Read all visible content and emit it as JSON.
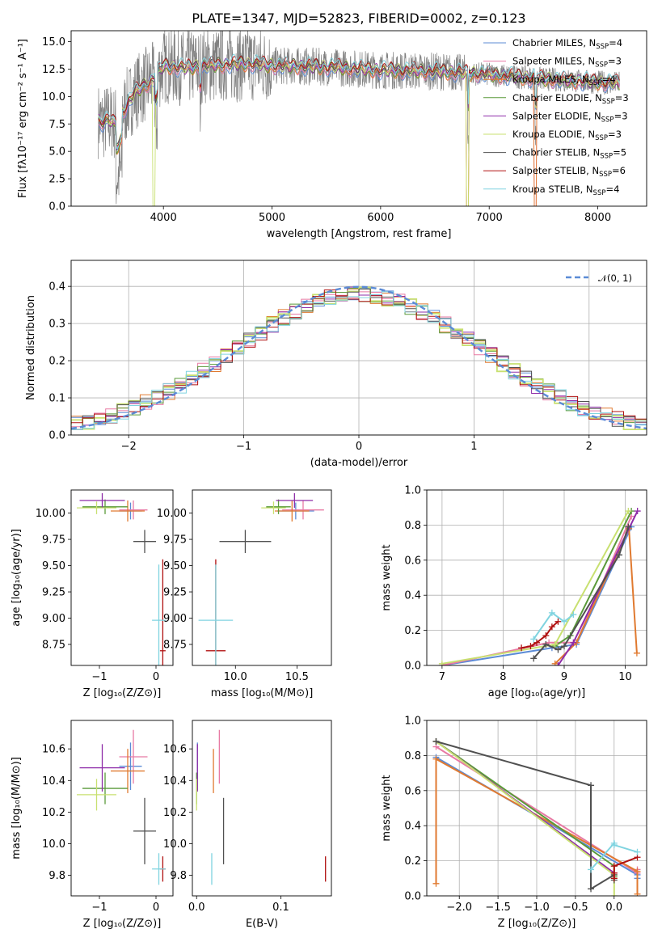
{
  "colors": {
    "Chabrier MILES": "#5b8bd6",
    "Salpeter MILES": "#e87aa4",
    "Kroupa MILES": "#e07a30",
    "Chabrier ELODIE": "#5a9a3a",
    "Salpeter ELODIE": "#8e2ca8",
    "Kroupa ELODIE": "#c8e070",
    "Chabrier STELIB": "#505050",
    "Salpeter STELIB": "#b01010",
    "Kroupa STELIB": "#80d4e0",
    "normal": "#5b8bd6",
    "data": "#808080"
  },
  "series_order": [
    "Chabrier MILES",
    "Salpeter MILES",
    "Kroupa MILES",
    "Chabrier ELODIE",
    "Salpeter ELODIE",
    "Kroupa ELODIE",
    "Chabrier STELIB",
    "Salpeter STELIB",
    "Kroupa STELIB"
  ],
  "chart_data": [
    {
      "id": "spectrum",
      "type": "line",
      "title": "PLATE=1347, MJD=52823, FIBERID=0002, z=0.123",
      "xlabel": "wavelength [Angstrom, rest frame]",
      "ylabel": "Flux [fλ10⁻¹⁷ erg cm⁻² s⁻¹ A⁻¹]",
      "xlim": [
        3150,
        8450
      ],
      "ylim": [
        0,
        16
      ],
      "xticks": [
        "4000",
        "5000",
        "6000",
        "7000",
        "8000"
      ],
      "yticks": [
        "0.0",
        "2.5",
        "5.0",
        "7.5",
        "10.0",
        "12.5",
        "15.0"
      ],
      "legend_position": "upper right",
      "legend": [
        {
          "main": "Chabrier MILES, N",
          "sub": "SSP",
          "tail": "=4"
        },
        {
          "main": "Salpeter MILES, N",
          "sub": "SSP",
          "tail": "=3"
        },
        {
          "main": "Kroupa MILES, N",
          "sub": "SSP",
          "tail": "=4"
        },
        {
          "main": "Chabrier ELODIE, N",
          "sub": "SSP",
          "tail": "=3"
        },
        {
          "main": "Salpeter ELODIE, N",
          "sub": "SSP",
          "tail": "=3"
        },
        {
          "main": "Kroupa ELODIE, N",
          "sub": "SSP",
          "tail": "=3"
        },
        {
          "main": "Chabrier STELIB, N",
          "sub": "SSP",
          "tail": "=5"
        },
        {
          "main": "Salpeter STELIB, N",
          "sub": "SSP",
          "tail": "=6"
        },
        {
          "main": "Kroupa STELIB, N",
          "sub": "SSP",
          "tail": "=4"
        }
      ],
      "continuum_x": [
        3400,
        3450,
        3500,
        3550,
        3650,
        3750,
        3900,
        4000,
        4200,
        4500,
        4800,
        5000,
        5500,
        6000,
        6500,
        7000,
        7500,
        8000,
        8200
      ],
      "continuum_y": [
        7.8,
        7.6,
        7.9,
        7.5,
        9.0,
        10.5,
        11.5,
        12.8,
        12.6,
        12.9,
        13.0,
        12.8,
        12.7,
        12.4,
        12.3,
        12.0,
        11.6,
        11.3,
        11.2
      ]
    },
    {
      "id": "residuals",
      "type": "line",
      "xlabel": "(data-model)/error",
      "ylabel": "Normed distribution",
      "xlim": [
        -2.5,
        2.5
      ],
      "ylim": [
        0,
        0.47
      ],
      "xticks": [
        "−2",
        "−1",
        "0",
        "1",
        "2"
      ],
      "yticks": [
        "0.0",
        "0.1",
        "0.2",
        "0.3",
        "0.4"
      ],
      "grid": true,
      "legend": "𝒩(0, 1)",
      "legend_position": "upper right",
      "bin_width": 0.1
    },
    {
      "id": "age_vs_Z",
      "type": "scatter",
      "xlabel": "Z [log₁₀(Z/Z⊙)]",
      "ylabel": "age  [log₁₀(age/yr)]",
      "xlim": [
        -1.5,
        0.3
      ],
      "ylim": [
        8.55,
        10.22
      ],
      "xticks": [
        "−1",
        "0"
      ],
      "yticks": [
        "8.75",
        "9.00",
        "9.25",
        "9.50",
        "9.75",
        "10.00"
      ],
      "points": [
        {
          "s": "Chabrier MILES",
          "x": -0.45,
          "y": 10.02,
          "xerr": 0.2,
          "yerr": 0.08
        },
        {
          "s": "Salpeter MILES",
          "x": -0.4,
          "y": 10.03,
          "xerr": 0.25,
          "yerr": 0.09
        },
        {
          "s": "Kroupa MILES",
          "x": -0.5,
          "y": 10.02,
          "xerr": 0.3,
          "yerr": 0.1
        },
        {
          "s": "Chabrier ELODIE",
          "x": -0.9,
          "y": 10.06,
          "xerr": 0.4,
          "yerr": 0.07
        },
        {
          "s": "Salpeter ELODIE",
          "x": -0.95,
          "y": 10.12,
          "xerr": 0.4,
          "yerr": 0.07
        },
        {
          "s": "Kroupa ELODIE",
          "x": -1.05,
          "y": 10.05,
          "xerr": 0.35,
          "yerr": 0.06
        },
        {
          "s": "Chabrier STELIB",
          "x": -0.2,
          "y": 9.73,
          "xerr": 0.2,
          "yerr": 0.11
        },
        {
          "s": "Salpeter STELIB",
          "x": 0.12,
          "y": 8.69,
          "xerr": 0.05,
          "yerr": 0.87
        },
        {
          "s": "Kroupa STELIB",
          "x": 0.05,
          "y": 8.98,
          "xerr": 0.12,
          "yerr": 0.53
        }
      ]
    },
    {
      "id": "age_vs_mass",
      "type": "scatter",
      "xlabel": "mass [log₁₀(M/M⊙)]",
      "xlim": [
        9.65,
        10.78
      ],
      "ylim": [
        8.55,
        10.22
      ],
      "xticks": [
        "10.0",
        "10.5"
      ],
      "yticks": [
        "8.75",
        "9.00",
        "9.25",
        "9.50",
        "9.75",
        "10.00"
      ],
      "points": [
        {
          "s": "Chabrier MILES",
          "x": 10.49,
          "y": 10.02,
          "xerr": 0.15,
          "yerr": 0.08
        },
        {
          "s": "Salpeter MILES",
          "x": 10.55,
          "y": 10.03,
          "xerr": 0.17,
          "yerr": 0.09
        },
        {
          "s": "Kroupa MILES",
          "x": 10.46,
          "y": 10.02,
          "xerr": 0.14,
          "yerr": 0.1
        },
        {
          "s": "Chabrier ELODIE",
          "x": 10.35,
          "y": 10.06,
          "xerr": 0.1,
          "yerr": 0.07
        },
        {
          "s": "Salpeter ELODIE",
          "x": 10.48,
          "y": 10.12,
          "xerr": 0.15,
          "yerr": 0.07
        },
        {
          "s": "Kroupa ELODIE",
          "x": 10.31,
          "y": 10.05,
          "xerr": 0.1,
          "yerr": 0.06
        },
        {
          "s": "Chabrier STELIB",
          "x": 10.08,
          "y": 9.73,
          "xerr": 0.21,
          "yerr": 0.11
        },
        {
          "s": "Salpeter STELIB",
          "x": 9.84,
          "y": 8.69,
          "xerr": 0.08,
          "yerr": 0.87
        },
        {
          "s": "Kroupa STELIB",
          "x": 9.84,
          "y": 8.98,
          "xerr": 0.14,
          "yerr": 0.53
        }
      ]
    },
    {
      "id": "massweight_vs_age",
      "type": "line",
      "xlabel": "age  [log₁₀(age/yr)]",
      "ylabel": "mass weight",
      "xlim": [
        6.75,
        10.35
      ],
      "ylim": [
        0,
        1
      ],
      "xticks": [
        "7",
        "8",
        "9",
        "10"
      ],
      "yticks": [
        "0.0",
        "0.2",
        "0.4",
        "0.6",
        "0.8",
        "1.0"
      ],
      "grid": true,
      "series": [
        {
          "s": "Chabrier MILES",
          "x": [
            7.0,
            8.8,
            9.2,
            10.1
          ],
          "y": [
            0.0,
            0.1,
            0.12,
            0.79
          ]
        },
        {
          "s": "Salpeter MILES",
          "x": [
            7.0,
            8.75,
            9.2,
            10.1
          ],
          "y": [
            0.0,
            0.13,
            0.13,
            0.85
          ]
        },
        {
          "s": "Kroupa MILES",
          "x": [
            8.85,
            9.2,
            10.06,
            10.19
          ],
          "y": [
            0.01,
            0.13,
            0.78,
            0.07
          ]
        },
        {
          "s": "Chabrier ELODIE",
          "x": [
            8.85,
            9.1,
            10.1
          ],
          "y": [
            0.11,
            0.17,
            0.88
          ]
        },
        {
          "s": "Salpeter ELODIE",
          "x": [
            8.9,
            9.15,
            10.2
          ],
          "y": [
            0.0,
            0.13,
            0.88
          ]
        },
        {
          "s": "Kroupa ELODIE",
          "x": [
            7.0,
            8.85,
            10.05
          ],
          "y": [
            0.01,
            0.12,
            0.88
          ]
        },
        {
          "s": "Chabrier STELIB",
          "x": [
            8.5,
            8.7,
            8.9,
            9.0,
            9.9,
            10.05
          ],
          "y": [
            0.04,
            0.12,
            0.09,
            0.11,
            0.63,
            0.79
          ]
        },
        {
          "s": "Salpeter STELIB",
          "x": [
            8.3,
            8.45,
            8.55,
            8.7,
            8.8,
            8.9
          ],
          "y": [
            0.1,
            0.11,
            0.13,
            0.17,
            0.22,
            0.25
          ]
        },
        {
          "s": "Kroupa STELIB",
          "x": [
            8.5,
            8.8,
            9.0,
            9.15
          ],
          "y": [
            0.15,
            0.3,
            0.25,
            0.29
          ]
        }
      ]
    },
    {
      "id": "mass_vs_Z",
      "type": "scatter",
      "xlabel": "Z [log₁₀(Z/Z⊙)]",
      "ylabel": "mass [log₁₀(M/M⊙)]",
      "xlim": [
        -1.5,
        0.3
      ],
      "ylim": [
        9.67,
        10.78
      ],
      "xticks": [
        "−1",
        "0"
      ],
      "yticks": [
        "9.8",
        "10.0",
        "10.2",
        "10.4",
        "10.6"
      ],
      "points": [
        {
          "s": "Chabrier MILES",
          "x": -0.45,
          "y": 10.49,
          "xerr": 0.2,
          "yerr": 0.15
        },
        {
          "s": "Salpeter MILES",
          "x": -0.4,
          "y": 10.55,
          "xerr": 0.25,
          "yerr": 0.17
        },
        {
          "s": "Kroupa MILES",
          "x": -0.5,
          "y": 10.46,
          "xerr": 0.3,
          "yerr": 0.14
        },
        {
          "s": "Chabrier ELODIE",
          "x": -0.9,
          "y": 10.35,
          "xerr": 0.4,
          "yerr": 0.1
        },
        {
          "s": "Salpeter ELODIE",
          "x": -0.95,
          "y": 10.48,
          "xerr": 0.4,
          "yerr": 0.15
        },
        {
          "s": "Kroupa ELODIE",
          "x": -1.05,
          "y": 10.31,
          "xerr": 0.35,
          "yerr": 0.1
        },
        {
          "s": "Chabrier STELIB",
          "x": -0.2,
          "y": 10.08,
          "xerr": 0.2,
          "yerr": 0.21
        },
        {
          "s": "Salpeter STELIB",
          "x": 0.12,
          "y": 9.84,
          "xerr": 0.05,
          "yerr": 0.08
        },
        {
          "s": "Kroupa STELIB",
          "x": 0.05,
          "y": 9.84,
          "xerr": 0.12,
          "yerr": 0.1
        }
      ]
    },
    {
      "id": "mass_vs_ebv",
      "type": "scatter",
      "xlabel": "E(B-V)",
      "xlim": [
        -0.005,
        0.16
      ],
      "ylim": [
        9.67,
        10.78
      ],
      "xticks": [
        "0.0",
        "0.1"
      ],
      "yticks": [
        "9.8",
        "10.0",
        "10.2",
        "10.4",
        "10.6"
      ],
      "points": [
        {
          "s": "Chabrier MILES",
          "x": 0.001,
          "y": 10.49,
          "xerr": 0,
          "yerr": 0.15
        },
        {
          "s": "Salpeter MILES",
          "x": 0.027,
          "y": 10.55,
          "xerr": 0,
          "yerr": 0.17
        },
        {
          "s": "Kroupa MILES",
          "x": 0.02,
          "y": 10.46,
          "xerr": 0,
          "yerr": 0.14
        },
        {
          "s": "Chabrier ELODIE",
          "x": 0.0,
          "y": 10.35,
          "xerr": 0,
          "yerr": 0.1
        },
        {
          "s": "Salpeter ELODIE",
          "x": 0.001,
          "y": 10.48,
          "xerr": 0,
          "yerr": 0.15
        },
        {
          "s": "Kroupa ELODIE",
          "x": 0.0,
          "y": 10.31,
          "xerr": 0,
          "yerr": 0.1
        },
        {
          "s": "Chabrier STELIB",
          "x": 0.032,
          "y": 10.08,
          "xerr": 0,
          "yerr": 0.21
        },
        {
          "s": "Salpeter STELIB",
          "x": 0.153,
          "y": 9.84,
          "xerr": 0,
          "yerr": 0.08
        },
        {
          "s": "Kroupa STELIB",
          "x": 0.018,
          "y": 9.84,
          "xerr": 0,
          "yerr": 0.1
        }
      ]
    },
    {
      "id": "massweight_vs_Z",
      "type": "line",
      "xlabel": "Z [log₁₀(Z/Z⊙)]",
      "ylabel": "mass weight",
      "xlim": [
        -2.42,
        0.42
      ],
      "ylim": [
        0,
        1
      ],
      "xticks": [
        "−2.0",
        "−1.5",
        "−1.0",
        "−0.5",
        "0.0"
      ],
      "yticks": [
        "0.0",
        "0.2",
        "0.4",
        "0.6",
        "0.8",
        "1.0"
      ],
      "grid": true,
      "series": [
        {
          "s": "Chabrier MILES",
          "x": [
            -2.3,
            0.3,
            0.3
          ],
          "y": [
            0.79,
            0.12,
            0.1
          ]
        },
        {
          "s": "Salpeter MILES",
          "x": [
            -2.3,
            0.3,
            0.3
          ],
          "y": [
            0.85,
            0.13,
            0.15
          ]
        },
        {
          "s": "Kroupa MILES",
          "x": [
            -2.3,
            -2.3,
            0.3,
            0.3
          ],
          "y": [
            0.07,
            0.78,
            0.14,
            0.01
          ]
        },
        {
          "s": "Chabrier ELODIE",
          "x": [
            -2.3,
            0.0,
            0.0
          ],
          "y": [
            0.88,
            0.17,
            0.11
          ]
        },
        {
          "s": "Salpeter ELODIE",
          "x": [
            -2.3,
            0.0
          ],
          "y": [
            0.88,
            0.13
          ]
        },
        {
          "s": "Kroupa ELODIE",
          "x": [
            -2.3,
            0.0,
            0.0
          ],
          "y": [
            0.88,
            0.12,
            0.0
          ]
        },
        {
          "s": "Chabrier STELIB",
          "x": [
            -2.3,
            -0.3,
            -0.3,
            0.0,
            0.0
          ],
          "y": [
            0.88,
            0.63,
            0.04,
            0.12,
            0.09
          ]
        },
        {
          "s": "Salpeter STELIB",
          "x": [
            0.0,
            0.0,
            0.0,
            0.3
          ],
          "y": [
            0.1,
            0.13,
            0.17,
            0.22
          ]
        },
        {
          "s": "Kroupa STELIB",
          "x": [
            -0.3,
            0.0,
            0.0,
            0.3
          ],
          "y": [
            0.15,
            0.3,
            0.29,
            0.25
          ]
        }
      ]
    }
  ]
}
